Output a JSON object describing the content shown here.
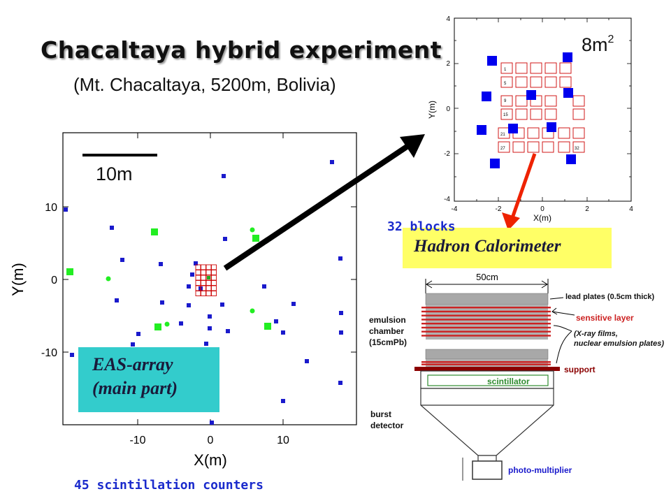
{
  "slide": {
    "title": "Chacaltaya hybrid experiment",
    "subtitle": "(Mt. Chacaltaya, 5200m, Bolivia)"
  },
  "eas_array": {
    "label_line1": "EAS-array",
    "label_line2": "(main part)",
    "scale_bar_label": "10m",
    "x_axis_label": "X(m)",
    "y_axis_label": "Y(m)",
    "x_ticks": [
      "-10",
      "0",
      "10"
    ],
    "y_ticks": [
      "10",
      "0",
      "-10"
    ],
    "counter_caption": "45 scintillation counters",
    "colors": {
      "counter": "#1a1acc",
      "counter_alt": "#22ee22",
      "calorimeter": "#cc0000"
    }
  },
  "detail_plot": {
    "area_label": "8m",
    "area_superscript": "2",
    "x_axis_label": "X(m)",
    "y_axis_label": "Y(m)",
    "x_ticks": [
      "-4",
      "-2",
      "0",
      "2",
      "4"
    ],
    "y_ticks": [
      "4",
      "2",
      "0",
      "-2",
      "-4"
    ],
    "block_numbers": [
      "1",
      "5",
      "9",
      "15",
      "21",
      "27",
      "32"
    ]
  },
  "calorimeter": {
    "blocks_caption": "32 blocks",
    "title": "Hadron Calorimeter",
    "width_label": "50cm",
    "lead_plates": "lead plates (0.5cm thick)",
    "sensitive_layer": "sensitive layer",
    "films_line1": "(X-ray films,",
    "films_line2": "nuclear emulsion plates)",
    "support": "support",
    "scintillator": "scintillator",
    "emulsion_line1": "emulsion",
    "emulsion_line2": "chamber",
    "emulsion_line3": "(15cmPb)",
    "burst_line1": "burst",
    "burst_line2": "detector",
    "photomultiplier": "photo-multiplier",
    "colors": {
      "sensitive": "#cc2222",
      "support": "#8b0000",
      "scintillator": "#2e8b2e",
      "photomultiplier": "#1a1acc"
    }
  }
}
